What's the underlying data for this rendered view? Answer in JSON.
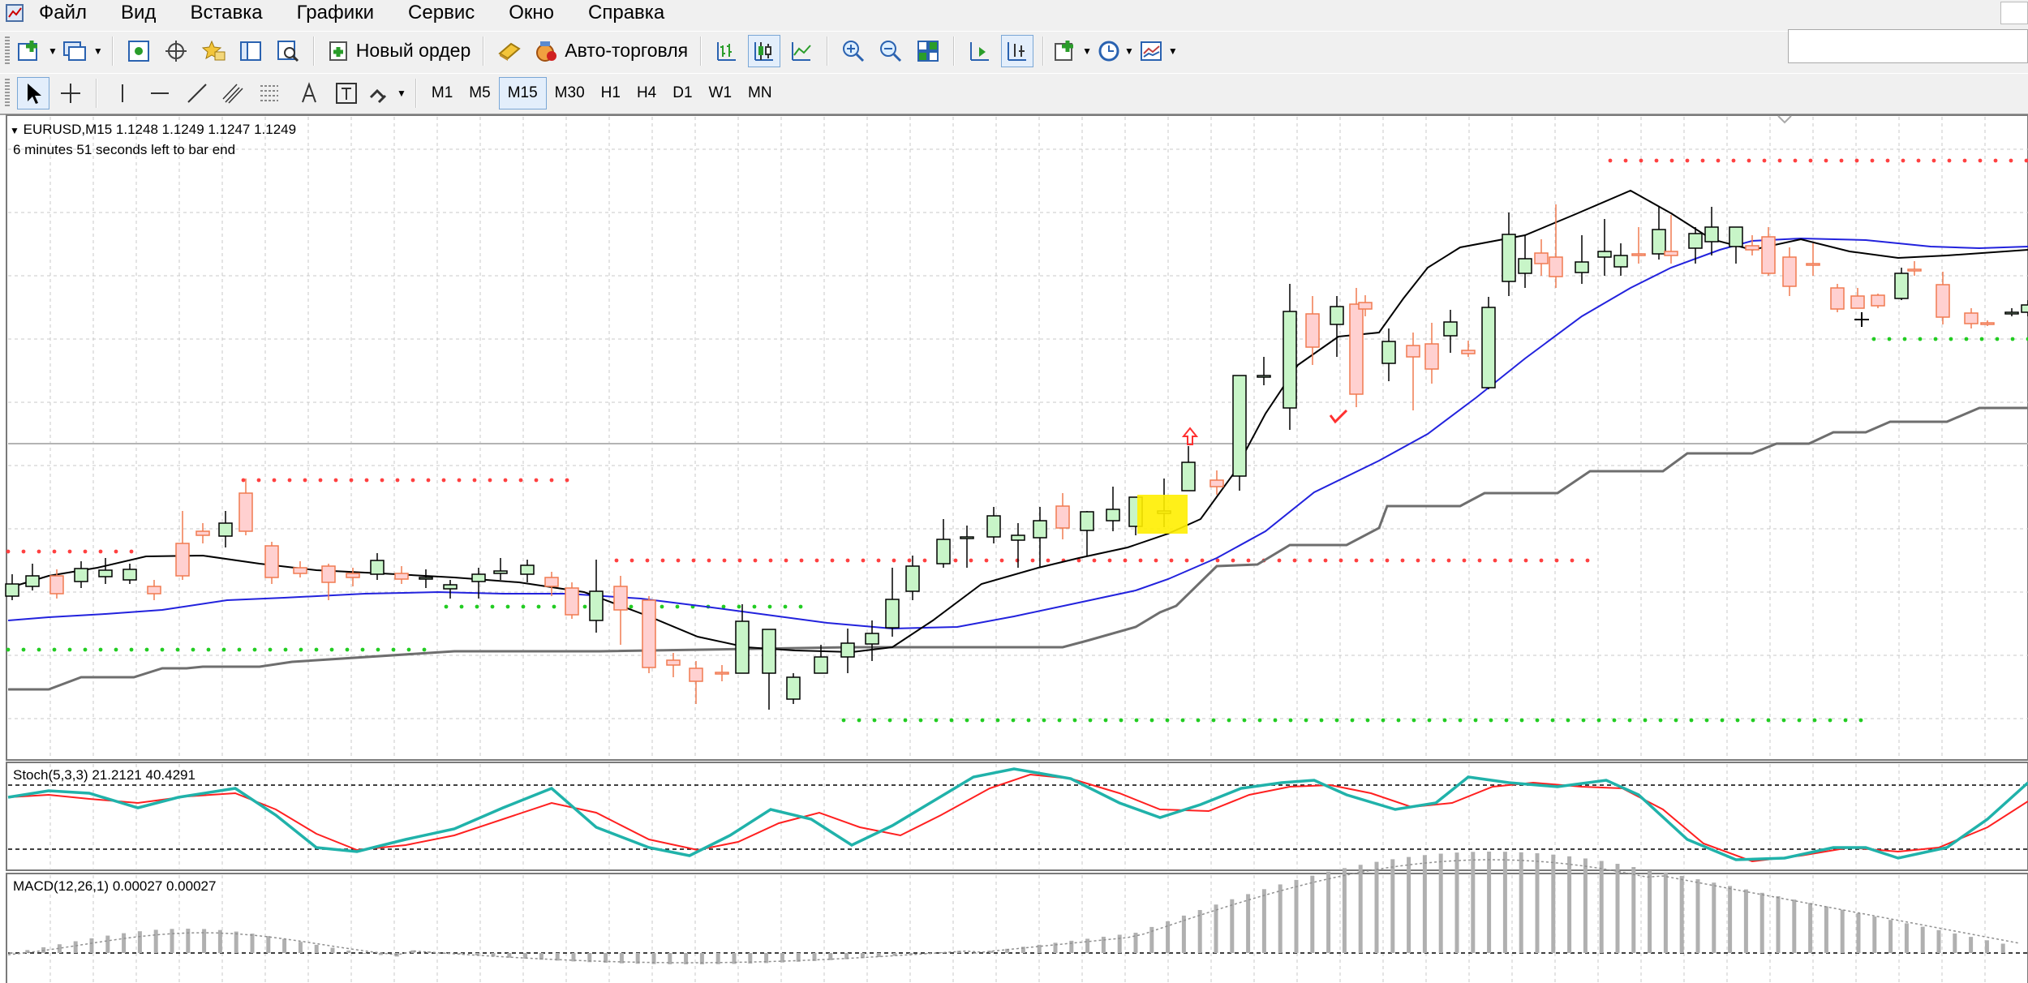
{
  "menu": [
    "Файл",
    "Вид",
    "Вставка",
    "Графики",
    "Сервис",
    "Окно",
    "Справка"
  ],
  "toolbar1": {
    "new_order_label": "Новый ордер",
    "auto_trading_label": "Авто-торговля"
  },
  "timeframes": [
    "M1",
    "M5",
    "M15",
    "M30",
    "H1",
    "H4",
    "D1",
    "W1",
    "MN"
  ],
  "active_timeframe": "M15",
  "chart": {
    "title": "EURUSD,M15  1.1248 1.1249 1.1247 1.1249",
    "timer": "6 minutes 51 seconds left to bar end",
    "stoch_label": "Stoch(5,3,3) 21.2121 40.4291",
    "macd_label": "MACD(12,26,1) 0.00027 0.00027",
    "colors": {
      "bull_fill": "#c8f5c8",
      "bear_fill": "#ffd0d0",
      "bear_edge": "#f07a50",
      "ma_fast": "#000000",
      "ma_slow": "#2222dd",
      "stop_line": "#6e6e6e",
      "stoch_main": "#20b2aa",
      "stoch_signal": "#ff2020",
      "dots_red": "#ff4040",
      "dots_green": "#22cc22"
    }
  }
}
